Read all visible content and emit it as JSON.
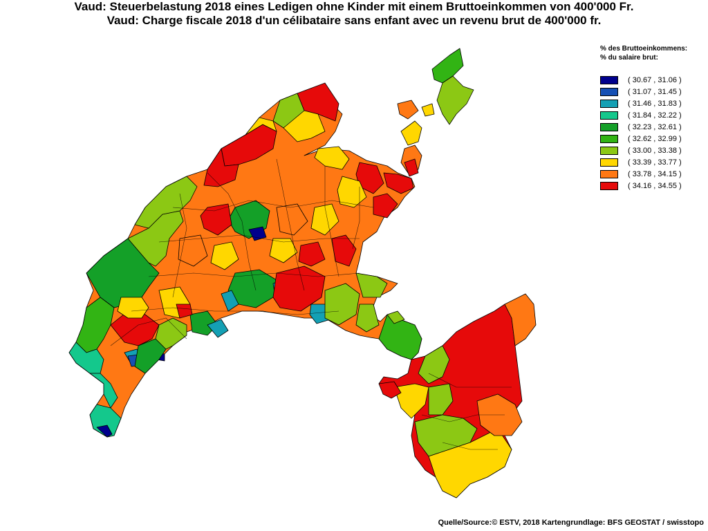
{
  "title_de": "Vaud: Steuerbelastung 2018 eines Ledigen ohne Kinder mit einem Bruttoeinkommen von 400'000 Fr.",
  "title_fr": "Vaud: Charge fiscale 2018 d'un célibataire sans enfant avec un revenu brut de 400'000 fr.",
  "legend": {
    "heading_de": "% des Bruttoeinkommens:",
    "heading_fr": "% du salaire brut:",
    "classes": [
      {
        "label": "( 30.67 , 31.06 )",
        "color": "#00008c"
      },
      {
        "label": "( 31.07 , 31.45 )",
        "color": "#1650b4"
      },
      {
        "label": "( 31.46 , 31.83 )",
        "color": "#14a0b4"
      },
      {
        "label": "( 31.84 , 32.22 )",
        "color": "#14c88c"
      },
      {
        "label": "( 32.23 , 32.61 )",
        "color": "#14a028"
      },
      {
        "label": "( 32.62 , 32.99 )",
        "color": "#32b414"
      },
      {
        "label": "( 33.00 , 33.38 )",
        "color": "#8cc814"
      },
      {
        "label": "( 33.39 , 33.77 )",
        "color": "#ffd700"
      },
      {
        "label": "( 33.78 , 34.15 )",
        "color": "#ff7814"
      },
      {
        "label": "( 34.16 , 34.55 )",
        "color": "#e60a0a"
      }
    ]
  },
  "source": "Quelle/Source:© ESTV, 2018 Kartengrundlage: BFS GEOSTAT / swisstopo"
}
